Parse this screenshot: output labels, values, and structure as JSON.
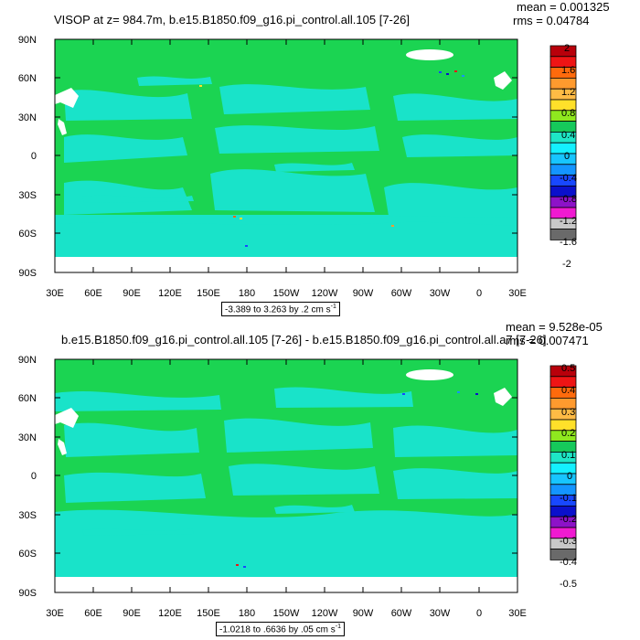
{
  "panels": [
    {
      "title": "VISOP at z= 984.7m, b.e15.B1850.f09_g16.pi_control.all.105 [7-26]",
      "mean_text": "mean = 0.001325",
      "rms_text": "rms = 0.04784",
      "range_text": "-3.389 to 3.263 by .2 cm s",
      "range_unit_exp": "-1",
      "colorbar_labels": [
        "2",
        "1.6",
        "1.2",
        "0.8",
        "0.4",
        "0",
        "-0.4",
        "-0.8",
        "-1.2",
        "-1.6",
        "-2"
      ]
    },
    {
      "title": "b.e15.B1850.f09_g16.pi_control.all.105 [7-26] - b.e15.B1850.f09_g16.pi_control.all.a7 [7-26]",
      "mean_text": "mean = 9.528e-05",
      "rms_text": "rms = 0.007471",
      "range_text": "-1.0218 to .6636 by .05 cm s",
      "range_unit_exp": "-1",
      "colorbar_labels": [
        "0.5",
        "0.4",
        "0.3",
        "0.2",
        "0.1",
        "0",
        "-0.1",
        "-0.2",
        "-0.3",
        "-0.4",
        "-0.5"
      ]
    }
  ],
  "axes": {
    "x_ticks": [
      "30E",
      "60E",
      "90E",
      "120E",
      "150E",
      "180",
      "150W",
      "120W",
      "90W",
      "60W",
      "30W",
      "0",
      "30E"
    ],
    "y_ticks": [
      "90N",
      "60N",
      "30N",
      "0",
      "30S",
      "60S",
      "90S"
    ]
  },
  "colorbar_colors": [
    "#b8000b",
    "#ee1515",
    "#ff6a0c",
    "#ff9a2e",
    "#ffbb45",
    "#ffe02a",
    "#8fe81f",
    "#16c95b",
    "#1ee6c6",
    "#14f0ff",
    "#17c5ff",
    "#1495ff",
    "#1848ff",
    "#0b10cc",
    "#8d12c8",
    "#f01ad1",
    "#c8c8c8",
    "#6a6a6a"
  ],
  "colors": {
    "land": "#1bd452",
    "ocean": "#19e3c9",
    "missing": "#ffffff"
  }
}
